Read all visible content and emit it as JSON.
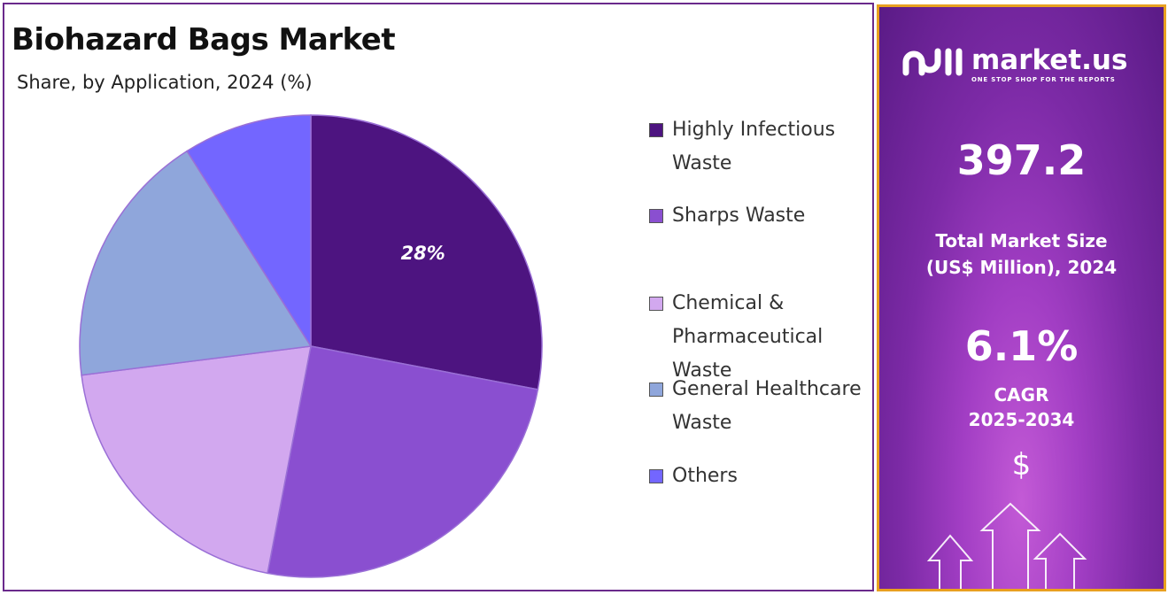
{
  "header": {
    "title": "Biohazard Bags Market",
    "subtitle": "Share, by Application, 2024 (%)"
  },
  "chart_data": {
    "type": "pie",
    "title": "Biohazard Bags Market",
    "subtitle": "Share, by Application, 2024 (%)",
    "legend_position": "right",
    "slices": [
      {
        "label": "Highly Infectious Waste",
        "value": 28,
        "color": "#4d1480",
        "data_label": "28%"
      },
      {
        "label": "Sharps Waste",
        "value": 25,
        "color": "#8a4fd0",
        "data_label": ""
      },
      {
        "label": "Chemical & Pharmaceutical Waste",
        "value": 20,
        "color": "#d2a8ef",
        "data_label": ""
      },
      {
        "label": "General Healthcare Waste",
        "value": 18,
        "color": "#8fa6db",
        "data_label": ""
      },
      {
        "label": "Others",
        "value": 9,
        "color": "#7366ff",
        "data_label": ""
      }
    ]
  },
  "sidebar": {
    "brand": "market.us",
    "tagline": "ONE STOP SHOP FOR THE REPORTS",
    "market_size": "397.2",
    "market_size_label_1": "Total Market Size",
    "market_size_label_2": "(US$ Million), 2024",
    "cagr": "6.1%",
    "cagr_label_1": "CAGR",
    "cagr_label_2": "2025-2034",
    "currency_symbol": "$",
    "icons": [
      "market-us-logo-icon",
      "dollar-icon",
      "growth-arrows-icon"
    ]
  }
}
